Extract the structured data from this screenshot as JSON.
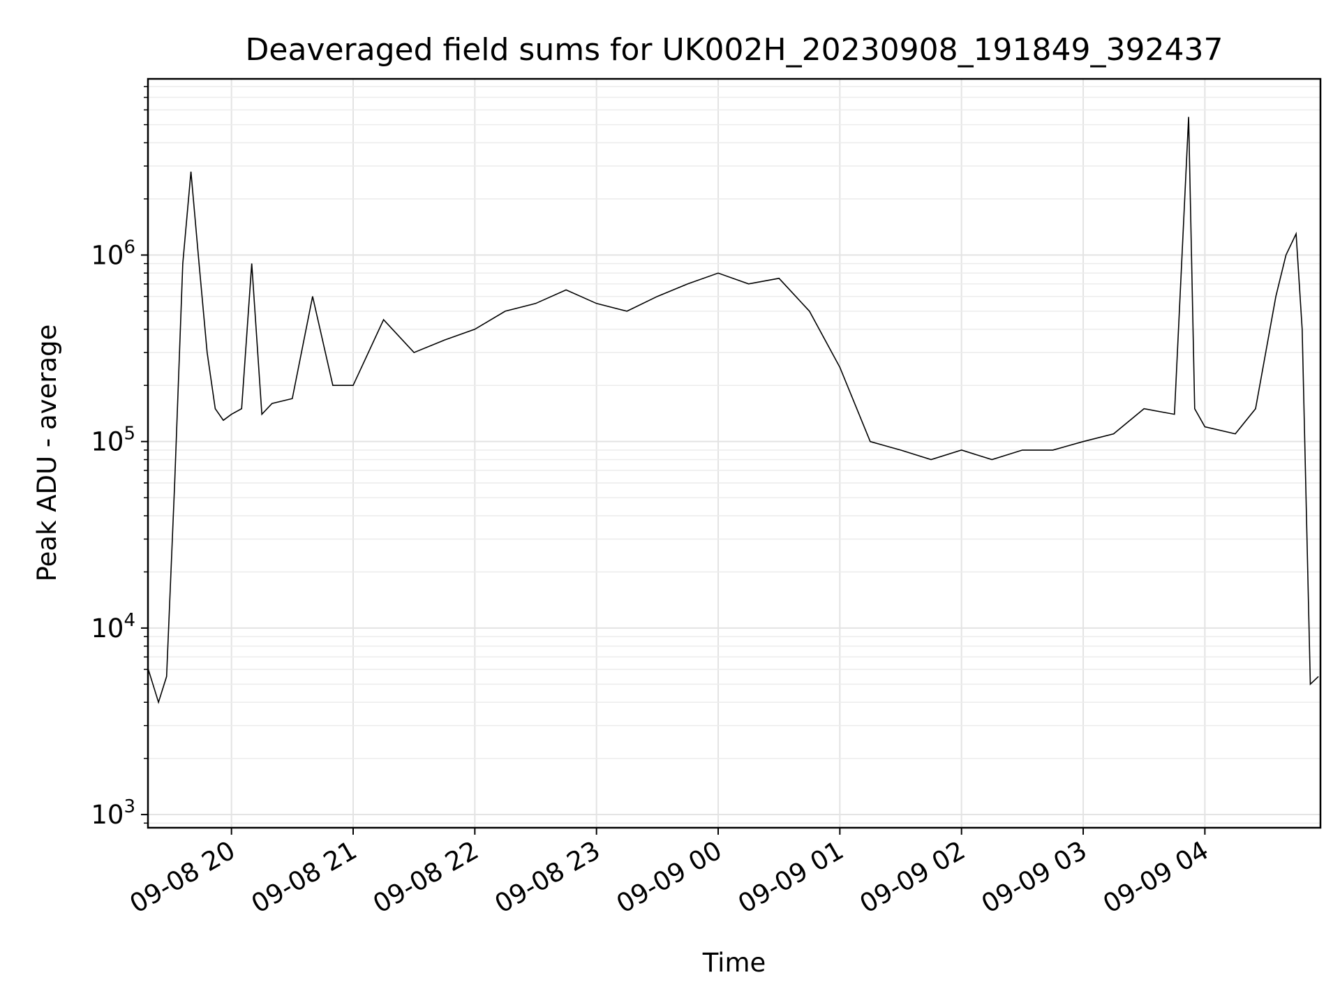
{
  "chart_data": {
    "type": "line",
    "title": "Deaveraged field sums for UK002H_20230908_191849_392437",
    "xlabel": "Time",
    "ylabel": "Peak ADU - average",
    "yscale": "log",
    "ylim": [
      850,
      8800000
    ],
    "xlim": [
      "2023-09-08 19:18:49",
      "2023-09-09 04:57:00"
    ],
    "xticks": [
      "09-08 20",
      "09-08 21",
      "09-08 22",
      "09-08 23",
      "09-09 00",
      "09-09 01",
      "09-09 02",
      "09-09 03",
      "09-09 04"
    ],
    "yticks": [
      {
        "base": "10",
        "exp": "3",
        "value": 1000
      },
      {
        "base": "10",
        "exp": "4",
        "value": 10000
      },
      {
        "base": "10",
        "exp": "5",
        "value": 100000
      },
      {
        "base": "10",
        "exp": "6",
        "value": 1000000
      }
    ],
    "grid": true,
    "line_color": "#000000",
    "series": [
      {
        "x": [
          "2023-09-08 19:19",
          "2023-09-08 19:24",
          "2023-09-08 19:28",
          "2023-09-08 19:32",
          "2023-09-08 19:36",
          "2023-09-08 19:40",
          "2023-09-08 19:44",
          "2023-09-08 19:48",
          "2023-09-08 19:52",
          "2023-09-08 19:56",
          "2023-09-08 20:00",
          "2023-09-08 20:05",
          "2023-09-08 20:10",
          "2023-09-08 20:15",
          "2023-09-08 20:20",
          "2023-09-08 20:30",
          "2023-09-08 20:40",
          "2023-09-08 20:50",
          "2023-09-08 21:00",
          "2023-09-08 21:15",
          "2023-09-08 21:30",
          "2023-09-08 21:45",
          "2023-09-08 22:00",
          "2023-09-08 22:15",
          "2023-09-08 22:30",
          "2023-09-08 22:45",
          "2023-09-08 23:00",
          "2023-09-08 23:15",
          "2023-09-08 23:30",
          "2023-09-08 23:45",
          "2023-09-09 00:00",
          "2023-09-09 00:15",
          "2023-09-09 00:30",
          "2023-09-09 00:45",
          "2023-09-09 01:00",
          "2023-09-09 01:15",
          "2023-09-09 01:30",
          "2023-09-09 01:45",
          "2023-09-09 02:00",
          "2023-09-09 02:15",
          "2023-09-09 02:30",
          "2023-09-09 02:45",
          "2023-09-09 03:00",
          "2023-09-09 03:15",
          "2023-09-09 03:30",
          "2023-09-09 03:45",
          "2023-09-09 03:52",
          "2023-09-09 03:55",
          "2023-09-09 04:00",
          "2023-09-09 04:15",
          "2023-09-09 04:25",
          "2023-09-09 04:35",
          "2023-09-09 04:40",
          "2023-09-09 04:45",
          "2023-09-09 04:48",
          "2023-09-09 04:52",
          "2023-09-09 04:56"
        ],
        "y": [
          6000,
          4000,
          5500,
          60000,
          900000,
          2800000,
          900000,
          300000,
          150000,
          130000,
          140000,
          150000,
          900000,
          140000,
          160000,
          170000,
          600000,
          200000,
          200000,
          450000,
          300000,
          350000,
          400000,
          500000,
          550000,
          650000,
          550000,
          500000,
          600000,
          700000,
          800000,
          700000,
          750000,
          500000,
          250000,
          100000,
          90000,
          80000,
          90000,
          80000,
          90000,
          90000,
          100000,
          110000,
          150000,
          140000,
          5500000,
          150000,
          120000,
          110000,
          150000,
          600000,
          1000000,
          1300000,
          400000,
          5000,
          5500
        ]
      }
    ]
  }
}
